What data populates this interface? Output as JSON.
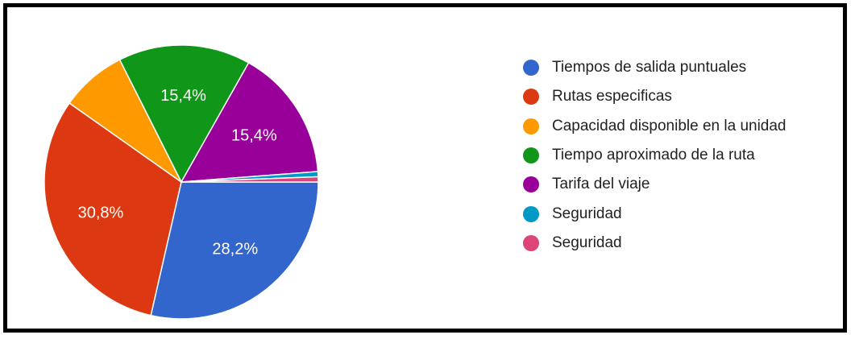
{
  "chart_data": {
    "type": "pie",
    "title": "",
    "slices": [
      {
        "label": "Tiempos de salida puntuales",
        "value": 28.2,
        "display": "28,2%",
        "color": "#3366cc"
      },
      {
        "label": "Rutas especificas",
        "value": 30.8,
        "display": "30,8%",
        "color": "#dc3912"
      },
      {
        "label": "Capacidad disponible en la unidad",
        "value": 7.7,
        "display": "",
        "color": "#ff9900"
      },
      {
        "label": "Tiempo aproximado de la ruta",
        "value": 15.4,
        "display": "15,4%",
        "color": "#109618"
      },
      {
        "label": "Tarifa del viaje",
        "value": 15.4,
        "display": "15,4%",
        "color": "#990099"
      },
      {
        "label": "Seguridad",
        "value": 0.6,
        "display": "",
        "color": "#0099c6"
      },
      {
        "label": "Seguridad",
        "value": 0.6,
        "display": "",
        "color": "#dd4477"
      }
    ],
    "legend_position": "right"
  }
}
